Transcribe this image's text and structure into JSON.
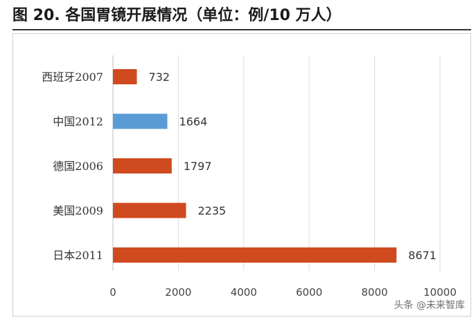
{
  "title": "图 20. 各国胃镜开展情况（单位：例/10 万人）",
  "watermark": "头条 @未来智库",
  "chart_data": {
    "type": "bar",
    "orientation": "horizontal",
    "categories": [
      "西班牙2007",
      "中国2012",
      "德国2006",
      "美国2009",
      "日本2011"
    ],
    "values": [
      732,
      1664,
      1797,
      2235,
      8671
    ],
    "highlight_index": 1,
    "colors": {
      "default": "#d04a1f",
      "highlight": "#5b9bd5"
    },
    "xlim": [
      0,
      10000
    ],
    "xticks": [
      0,
      2000,
      4000,
      6000,
      8000,
      10000
    ],
    "grid": true,
    "title": "",
    "xlabel": "",
    "ylabel": ""
  }
}
